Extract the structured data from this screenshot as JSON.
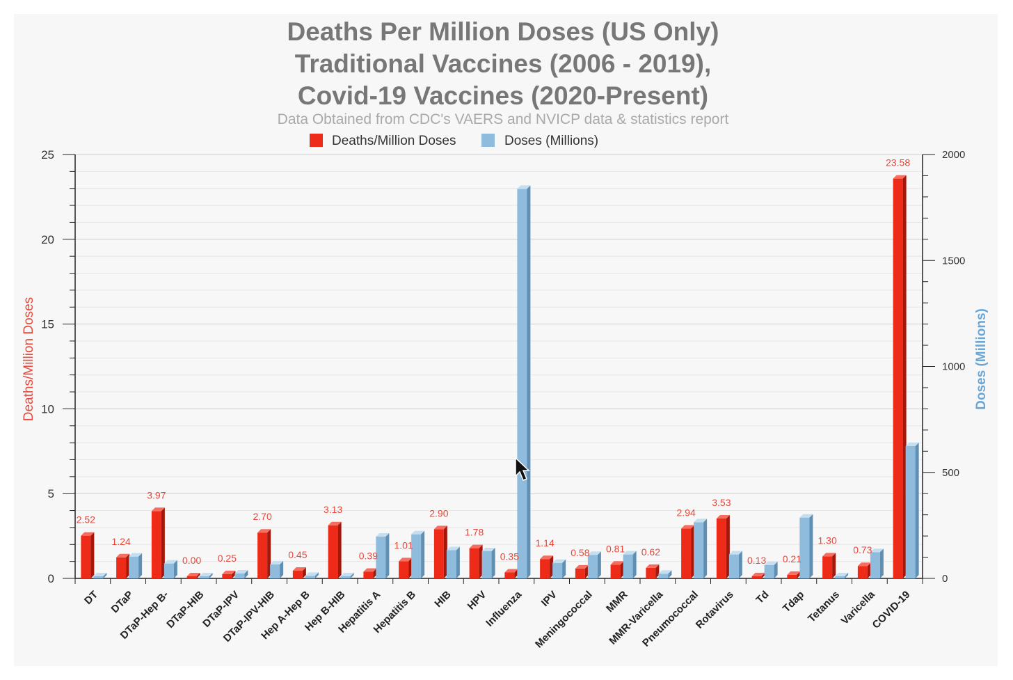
{
  "colors": {
    "deaths": "#ee2a18",
    "doses": "#8fbcdc",
    "y_left_title": "#e8473a",
    "y_right_title": "#6aa6d6",
    "data_label": "#e8473a",
    "title": "#777777",
    "subtitle": "#a9a9a9",
    "grid": "#d9d9d9"
  },
  "chart_data": {
    "type": "bar",
    "title": [
      "Deaths Per Million Doses (US Only)",
      "Traditional Vaccines (2006 - 2019),",
      "Covid-19 Vaccines (2020-Present)"
    ],
    "subtitle": "Data Obtained from CDC's VAERS and NVICP data & statistics report",
    "legend_position": "top-center",
    "grid": true,
    "categories": [
      "DT",
      "DTaP",
      "DTaP-Hep B-",
      "DTaP-HIB",
      "DTaP-IPV",
      "DTaP-IPV-HIB",
      "Hep A-Hep B",
      "Hep B-HIB",
      "Hepatitis A",
      "Hepatitis B",
      "HIB",
      "HPV",
      "Influenza",
      "IPV",
      "Meningococcal",
      "MMR",
      "MMR-Varicella",
      "Pneumococcal",
      "Rotavirus",
      "Td",
      "Tdap",
      "Tetanus",
      "Varicella",
      "COVID-19"
    ],
    "series": [
      {
        "name": "Deaths/Million Doses",
        "axis": "left",
        "values": [
          2.52,
          1.24,
          3.97,
          0.0,
          0.25,
          2.7,
          0.45,
          3.13,
          0.39,
          1.01,
          2.9,
          1.78,
          0.35,
          1.14,
          0.58,
          0.81,
          0.62,
          2.94,
          3.53,
          0.13,
          0.21,
          1.3,
          0.73,
          23.58
        ],
        "labels": [
          "2.52",
          "1.24",
          "3.97",
          "0.00",
          "0.25",
          "2.70",
          "0.45",
          "3.13",
          "0.39",
          "1.01",
          "2.90",
          "1.78",
          "0.35",
          "1.14",
          "0.58",
          "0.81",
          "0.62",
          "2.94",
          "3.53",
          "0.13",
          "0.21",
          "1.30",
          "0.73",
          "23.58"
        ]
      },
      {
        "name": "Doses (Millions)",
        "axis": "right",
        "values": [
          2,
          103,
          70,
          3,
          23,
          66,
          12,
          3,
          197,
          208,
          133,
          128,
          1838,
          73,
          111,
          113,
          22,
          265,
          113,
          63,
          287,
          2,
          124,
          624
        ]
      }
    ],
    "y_left": {
      "label": "Deaths/Million Doses",
      "lim": [
        0,
        25
      ],
      "ticks": [
        "0",
        "5",
        "10",
        "15",
        "20",
        "25"
      ]
    },
    "y_right": {
      "label": "Doses (Millions)",
      "lim": [
        0,
        2000
      ],
      "ticks": [
        "0",
        "500",
        "1000",
        "1500",
        "2000"
      ]
    }
  }
}
